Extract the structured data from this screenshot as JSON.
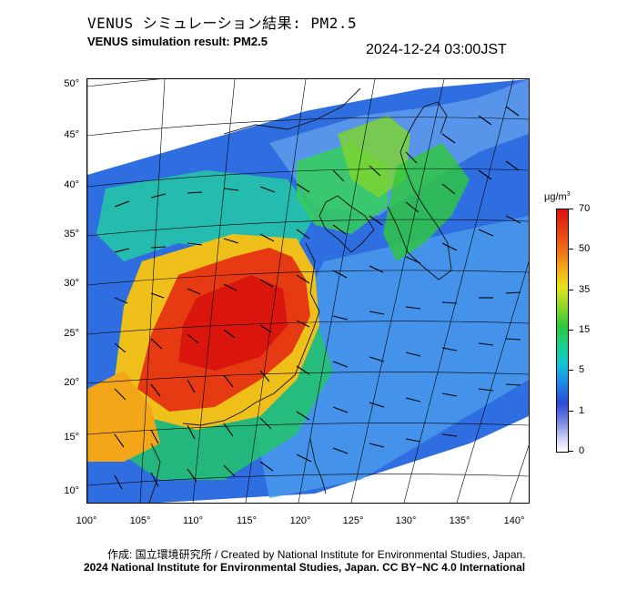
{
  "header": {
    "title_jp": "VENUS シミュレーション結果: PM2.5",
    "title_en": "VENUS simulation result: PM2.5",
    "timestamp": "2024-12-24 03:00JST"
  },
  "map": {
    "lat_labels": [
      "50°",
      "45°",
      "40°",
      "35°",
      "30°",
      "25°",
      "20°",
      "15°",
      "10°"
    ],
    "lon_labels": [
      "100°",
      "105°",
      "110°",
      "115°",
      "120°",
      "125°",
      "130°",
      "135°",
      "140°"
    ],
    "layer": "PM2.5 concentration with wind vectors"
  },
  "colorbar": {
    "unit": "μg/m",
    "unit_sup": "3",
    "ticks": [
      "70",
      "50",
      "35",
      "15",
      "5",
      "1",
      "0"
    ],
    "colors": {
      "min": "#ffffff",
      "low": "#2a4bd6",
      "mid": "#2fc93a",
      "high": "#f4a619",
      "max": "#d9150e"
    }
  },
  "footer": {
    "credit": "作成: 国立環境研究所 / Created by National Institute for Environmental Studies, Japan.",
    "license": "2024 National Institute for Environmental Studies, Japan. CC BY−NC 4.0 International"
  }
}
